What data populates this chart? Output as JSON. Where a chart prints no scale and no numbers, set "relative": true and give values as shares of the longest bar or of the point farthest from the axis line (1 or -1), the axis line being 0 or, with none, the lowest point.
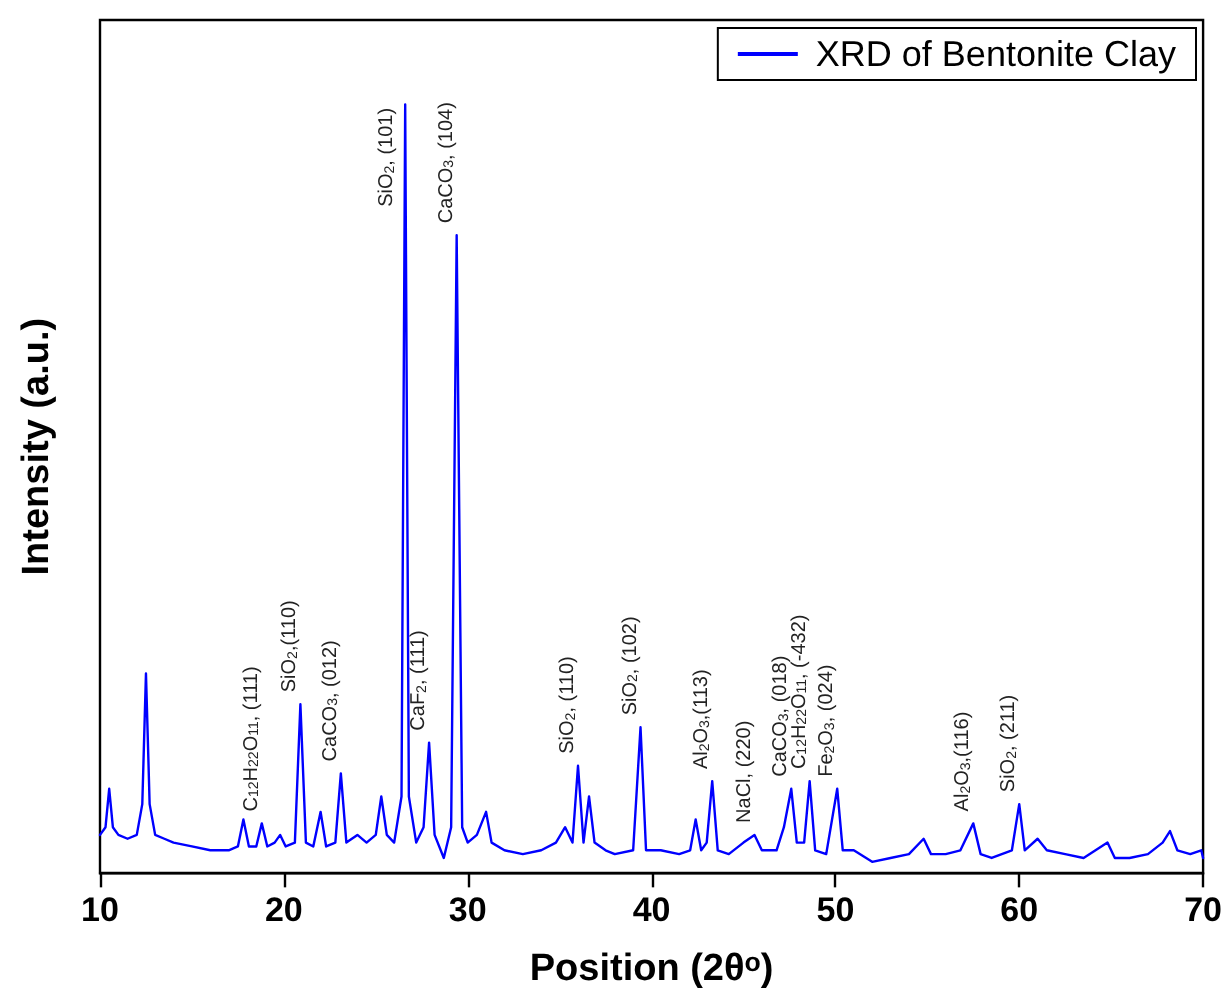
{
  "chart_data": {
    "type": "line",
    "relative": true,
    "xlabel": "Position (2θ$^{o}$)",
    "ylabel": "Intensity (a.u.)",
    "xlim": [
      10,
      70
    ],
    "xticks": [
      10,
      20,
      30,
      40,
      50,
      60,
      70
    ],
    "tick_labels": "x",
    "grid": false,
    "legend": "top right",
    "marker": "none",
    "line_style": "solid",
    "series": [
      {
        "name": "XRD of Bentonite Clay",
        "color": "#0000ff",
        "x": [
          10.0,
          10.3,
          10.5,
          10.7,
          11.0,
          11.5,
          12.0,
          12.3,
          12.5,
          12.7,
          13.0,
          13.5,
          14.0,
          15.0,
          16.0,
          17.0,
          17.5,
          17.8,
          18.1,
          18.5,
          18.8,
          19.1,
          19.5,
          19.8,
          20.1,
          20.6,
          20.9,
          21.2,
          21.6,
          22.0,
          22.3,
          22.8,
          23.1,
          23.4,
          24.0,
          24.5,
          25.0,
          25.3,
          25.6,
          26.0,
          26.4,
          26.6,
          26.8,
          27.2,
          27.6,
          27.9,
          28.2,
          28.7,
          29.1,
          29.4,
          29.7,
          30.0,
          30.5,
          31.0,
          31.3,
          32.0,
          33.0,
          34.0,
          34.8,
          35.3,
          35.7,
          36.0,
          36.3,
          36.6,
          36.9,
          37.5,
          38.0,
          39.0,
          39.4,
          39.7,
          40.5,
          41.5,
          42.1,
          42.4,
          42.7,
          43.0,
          43.3,
          43.6,
          44.2,
          45.0,
          45.6,
          46.0,
          46.8,
          47.2,
          47.6,
          47.9,
          48.3,
          48.6,
          48.9,
          49.5,
          50.1,
          50.4,
          51.0,
          52.0,
          53.0,
          54.0,
          54.8,
          55.2,
          56.0,
          56.8,
          57.5,
          57.9,
          58.5,
          59.6,
          60.0,
          60.3,
          61.0,
          61.5,
          62.5,
          63.5,
          64.8,
          65.2,
          66.0,
          67.0,
          67.8,
          68.2,
          68.6,
          69.3,
          69.9,
          70.0
        ],
        "values": [
          0.05,
          0.06,
          0.11,
          0.06,
          0.05,
          0.045,
          0.05,
          0.09,
          0.26,
          0.09,
          0.05,
          0.045,
          0.04,
          0.035,
          0.03,
          0.03,
          0.035,
          0.07,
          0.035,
          0.035,
          0.065,
          0.035,
          0.04,
          0.05,
          0.035,
          0.04,
          0.22,
          0.04,
          0.035,
          0.08,
          0.035,
          0.04,
          0.13,
          0.04,
          0.05,
          0.04,
          0.05,
          0.1,
          0.05,
          0.04,
          0.1,
          1.0,
          0.1,
          0.04,
          0.06,
          0.17,
          0.05,
          0.02,
          0.06,
          0.83,
          0.06,
          0.04,
          0.05,
          0.08,
          0.04,
          0.03,
          0.025,
          0.03,
          0.04,
          0.06,
          0.04,
          0.14,
          0.04,
          0.1,
          0.04,
          0.03,
          0.025,
          0.03,
          0.19,
          0.03,
          0.03,
          0.025,
          0.03,
          0.07,
          0.03,
          0.04,
          0.12,
          0.03,
          0.025,
          0.04,
          0.05,
          0.03,
          0.03,
          0.06,
          0.11,
          0.04,
          0.04,
          0.12,
          0.03,
          0.025,
          0.11,
          0.03,
          0.03,
          0.015,
          0.02,
          0.025,
          0.045,
          0.025,
          0.025,
          0.03,
          0.065,
          0.025,
          0.02,
          0.03,
          0.09,
          0.03,
          0.045,
          0.03,
          0.025,
          0.02,
          0.04,
          0.02,
          0.02,
          0.025,
          0.04,
          0.055,
          0.03,
          0.025,
          0.03,
          0.02
        ]
      }
    ],
    "annotations": [
      {
        "text": "C$_{12}$H$_{22}$O$_{11}$, (111)",
        "x": 18.8,
        "y": 0.065
      },
      {
        "text": "SiO$_{2}$,(110)",
        "x": 20.9,
        "y": 0.22
      },
      {
        "text": "CaCO$_{3}$, (012)",
        "x": 23.1,
        "y": 0.13
      },
      {
        "text": "SiO$_{2}$, (101)",
        "x": 26.6,
        "y": 1.0
      },
      {
        "text": "CaF$_{2}$, (111)",
        "x": 27.9,
        "y": 0.17
      },
      {
        "text": "CaCO$_{3}$, (104)",
        "x": 29.4,
        "y": 0.83
      },
      {
        "text": "SiO$_{2}$, (110)",
        "x": 36.0,
        "y": 0.14
      },
      {
        "text": "SiO$_{2}$, (102)",
        "x": 39.4,
        "y": 0.19
      },
      {
        "text": "Al$_{2}$O$_{3}$,(113)",
        "x": 43.3,
        "y": 0.12
      },
      {
        "text": "NaCl, (220)",
        "x": 45.6,
        "y": 0.05
      },
      {
        "text": "CaCO$_{3}$, (018)",
        "x": 47.6,
        "y": 0.11
      },
      {
        "text": "C$_{12}$H$_{22}$O$_{11}$, (-432)",
        "x": 48.6,
        "y": 0.12
      },
      {
        "text": "Fe$_{2}$O$_{3}$, (024)",
        "x": 50.1,
        "y": 0.11
      },
      {
        "text": "Al$_{2}$O$_{3}$,(116)",
        "x": 57.5,
        "y": 0.065
      },
      {
        "text": "SiO$_{2}$, (211)",
        "x": 60.0,
        "y": 0.09
      }
    ]
  }
}
